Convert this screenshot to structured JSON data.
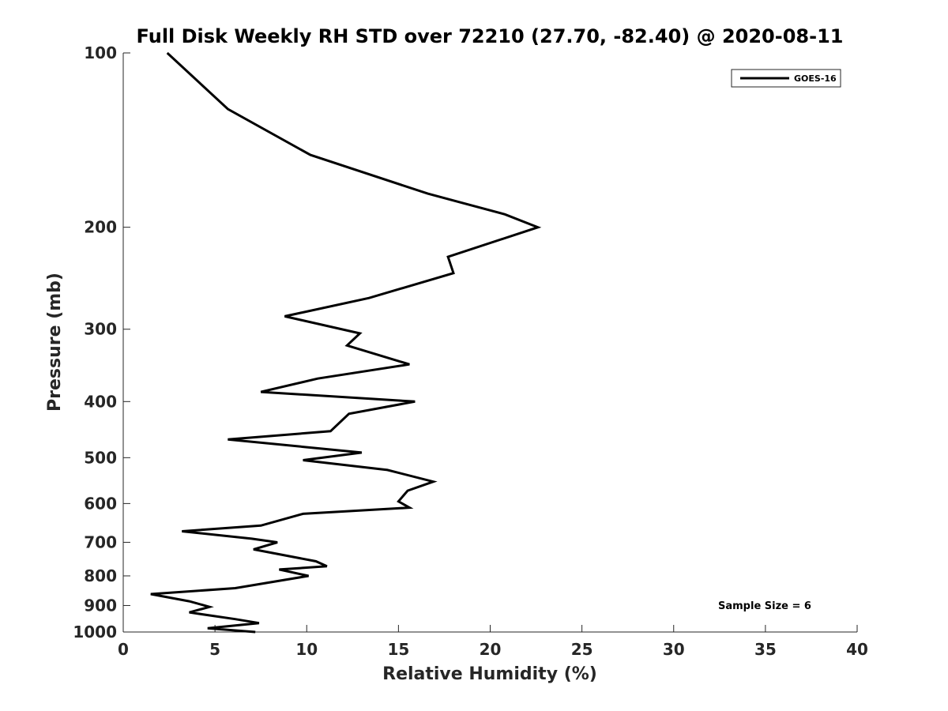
{
  "chart_data": {
    "type": "line",
    "title": "Full Disk Weekly RH STD over 72210 (27.70, -82.40) @ 2020-08-11",
    "xlabel": "Relative Humidity (%)",
    "ylabel": "Pressure (mb)",
    "xlim": [
      0,
      40
    ],
    "ylim": [
      100,
      1000
    ],
    "y_scale": "log",
    "y_reversed": true,
    "x_ticks": [
      0,
      5,
      10,
      15,
      20,
      25,
      30,
      35,
      40
    ],
    "y_ticks": [
      100,
      200,
      300,
      400,
      500,
      600,
      700,
      800,
      900,
      1000
    ],
    "grid": false,
    "legend_position": "top-right",
    "series": [
      {
        "name": "GOES-16",
        "color": "#000000",
        "x": [
          2.4,
          5.7,
          10.2,
          16.6,
          20.8,
          22.6,
          17.7,
          18.0,
          13.4,
          8.8,
          12.9,
          12.2,
          15.6,
          10.6,
          7.5,
          15.9,
          12.3,
          11.3,
          5.7,
          13.0,
          9.8,
          14.4,
          16.9,
          15.5,
          15.0,
          15.6,
          9.8,
          7.5,
          3.2,
          7.0,
          8.4,
          7.1,
          10.5,
          11.1,
          8.5,
          10.1,
          6.1,
          1.5,
          3.6,
          4.7,
          3.6,
          6.1,
          7.4,
          4.6,
          7.2
        ],
        "y": [
          100,
          125,
          150,
          175,
          190,
          200,
          225,
          240,
          265,
          285,
          305,
          320,
          345,
          365,
          385,
          400,
          420,
          450,
          465,
          490,
          505,
          525,
          550,
          570,
          595,
          610,
          625,
          655,
          670,
          690,
          700,
          720,
          755,
          770,
          780,
          800,
          840,
          860,
          885,
          905,
          925,
          950,
          965,
          985,
          1000
        ]
      }
    ],
    "annotations": [
      "Sample Size = 6"
    ]
  }
}
